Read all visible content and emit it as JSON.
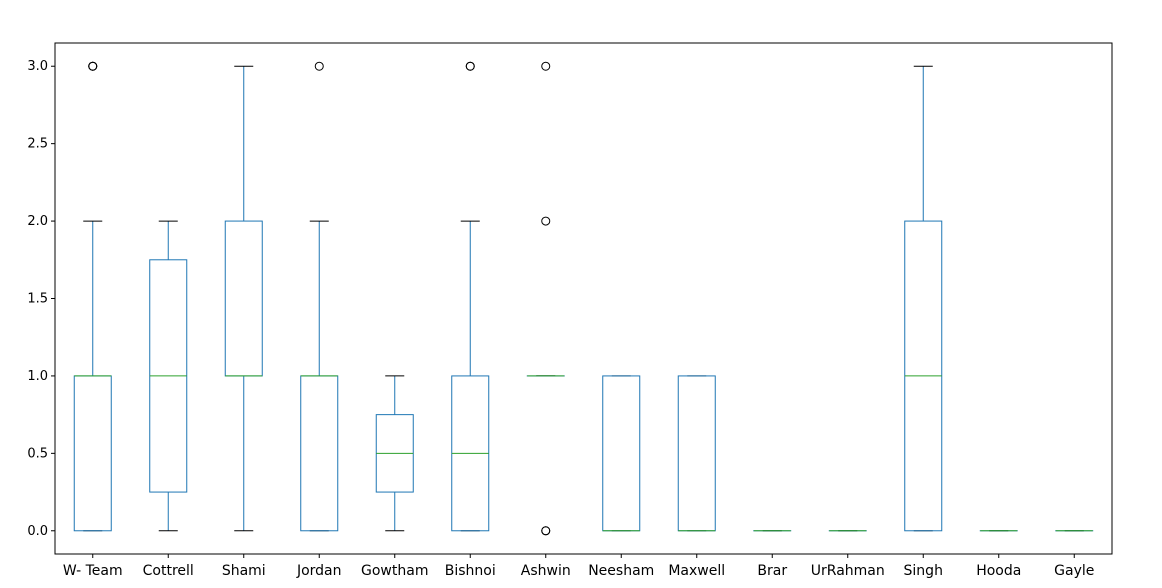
{
  "chart_data": {
    "type": "box",
    "categories": [
      "W- Team",
      "Cottrell",
      "Shami",
      "Jordan",
      "Gowtham",
      "Bishnoi",
      "Ashwin",
      "Neesham",
      "Maxwell",
      "Brar",
      "UrRahman",
      "Singh",
      "Hooda",
      "Gayle"
    ],
    "boxes": [
      {
        "whisker_low": 0,
        "q1": 0,
        "median": 1,
        "q3": 1,
        "whisker_high": 2,
        "outliers": [
          3,
          3,
          3
        ]
      },
      {
        "whisker_low": 0,
        "q1": 0.25,
        "median": 1,
        "q3": 1.75,
        "whisker_high": 2,
        "outliers": []
      },
      {
        "whisker_low": 0,
        "q1": 1,
        "median": 1,
        "q3": 2,
        "whisker_high": 3,
        "outliers": []
      },
      {
        "whisker_low": 0,
        "q1": 0,
        "median": 1,
        "q3": 1,
        "whisker_high": 2,
        "outliers": [
          3
        ]
      },
      {
        "whisker_low": 0,
        "q1": 0.25,
        "median": 0.5,
        "q3": 0.75,
        "whisker_high": 1,
        "outliers": []
      },
      {
        "whisker_low": 0,
        "q1": 0,
        "median": 0.5,
        "q3": 1,
        "whisker_high": 2,
        "outliers": [
          3,
          3
        ]
      },
      {
        "whisker_low": 1,
        "q1": 1,
        "median": 1,
        "q3": 1,
        "whisker_high": 1,
        "outliers": [
          0,
          0,
          2,
          3
        ]
      },
      {
        "whisker_low": 0,
        "q1": 0,
        "median": 0,
        "q3": 1,
        "whisker_high": 1,
        "outliers": []
      },
      {
        "whisker_low": 0,
        "q1": 0,
        "median": 0,
        "q3": 1,
        "whisker_high": 1,
        "outliers": []
      },
      {
        "whisker_low": 0,
        "q1": 0,
        "median": 0,
        "q3": 0,
        "whisker_high": 0,
        "outliers": []
      },
      {
        "whisker_low": 0,
        "q1": 0,
        "median": 0,
        "q3": 0,
        "whisker_high": 0,
        "outliers": []
      },
      {
        "whisker_low": 0,
        "q1": 0,
        "median": 1,
        "q3": 2,
        "whisker_high": 3,
        "outliers": []
      },
      {
        "whisker_low": 0,
        "q1": 0,
        "median": 0,
        "q3": 0,
        "whisker_high": 0,
        "outliers": []
      },
      {
        "whisker_low": 0,
        "q1": 0,
        "median": 0,
        "q3": 0,
        "whisker_high": 0,
        "outliers": []
      }
    ],
    "y_ticks": [
      0.0,
      0.5,
      1.0,
      1.5,
      2.0,
      2.5,
      3.0
    ],
    "y_tick_labels": [
      "0.0",
      "0.5",
      "1.0",
      "1.5",
      "2.0",
      "2.5",
      "3.0"
    ],
    "ylim": [
      -0.15,
      3.15
    ],
    "title": "",
    "xlabel": "",
    "ylabel": "",
    "grid": false,
    "colors": {
      "box": "#1f77b4",
      "median": "#2ca02c",
      "cap": "#000000",
      "outlier": "#000000",
      "axes": "#000000"
    }
  }
}
